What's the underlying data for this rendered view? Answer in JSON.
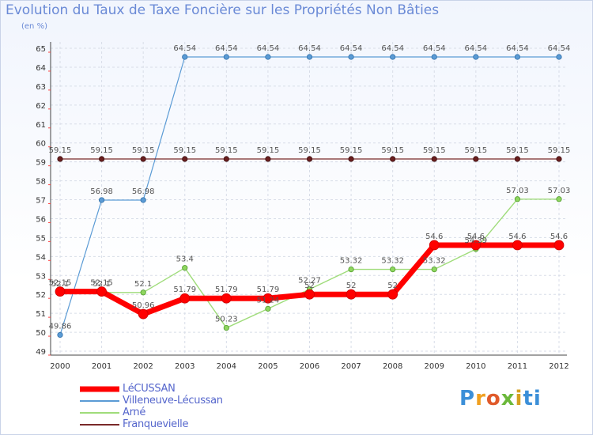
{
  "header": {
    "title": "Evolution du Taux de Taxe Foncière sur les Propriétés Non Bâties",
    "unit": "(en %)"
  },
  "logo": {
    "letters": [
      "P",
      "r",
      "o",
      "x",
      "i",
      "ti"
    ]
  },
  "chart_data": {
    "type": "line",
    "title": "Evolution du Taux de Taxe Foncière sur les Propriétés Non Bâties",
    "ylabel": "(en %)",
    "xlabel": "",
    "categories": [
      "2000",
      "2001",
      "2002",
      "2003",
      "2004",
      "2005",
      "2006",
      "2007",
      "2008",
      "2009",
      "2010",
      "2011",
      "2012"
    ],
    "ylim": [
      49,
      65
    ],
    "yticks": [
      "49",
      "50",
      "51",
      "52",
      "53",
      "54",
      "55",
      "56",
      "57",
      "58",
      "59",
      "60",
      "61",
      "62",
      "63",
      "64",
      "65"
    ],
    "grid": true,
    "legend_position": "bottom-left",
    "series": [
      {
        "name": "Villeneuve-Lécussan",
        "color": "#5b9bd5",
        "values": [
          49.86,
          56.98,
          56.98,
          64.54,
          64.54,
          64.54,
          64.54,
          64.54,
          64.54,
          64.54,
          64.54,
          64.54,
          64.54
        ],
        "labels": [
          "49.86",
          "56.98",
          "56.98",
          "64.54",
          "64.54",
          "64.54",
          "64.54",
          "64.54",
          "64.54",
          "64.54",
          "64.54",
          "64.54",
          "64.54"
        ]
      },
      {
        "name": "Franquevielle",
        "color": "#7a2a2a",
        "values": [
          59.15,
          59.15,
          59.15,
          59.15,
          59.15,
          59.15,
          59.15,
          59.15,
          59.15,
          59.15,
          59.15,
          59.15,
          59.15
        ],
        "labels": [
          "59.15",
          "59.15",
          "59.15",
          "59.15",
          "59.15",
          "59.15",
          "59.15",
          "59.15",
          "59.15",
          "59.15",
          "59.15",
          "59.15",
          "59.15"
        ]
      },
      {
        "name": "Arné",
        "color": "#9fdc7a",
        "values": [
          52.1,
          52.1,
          52.1,
          53.4,
          50.23,
          51.24,
          52.27,
          53.32,
          53.32,
          53.32,
          54.39,
          57.03,
          57.03
        ],
        "labels": [
          "52.1",
          "52.1",
          "52.1",
          "53.4",
          "50.23",
          "51.24",
          "52.27",
          "53.32",
          "53.32",
          "53.32",
          "54.39",
          "57.03",
          "57.03"
        ]
      },
      {
        "name": "LéCUSSAN",
        "color": "#ff0000",
        "values": [
          52.15,
          52.15,
          50.96,
          51.79,
          51.79,
          51.79,
          52,
          52,
          52,
          54.6,
          54.6,
          54.6,
          54.6
        ],
        "labels": [
          "52.15",
          "52.15",
          "50.96",
          "51.79",
          "51.79",
          "51.79",
          "52",
          "52",
          "52",
          "54.6",
          "54.6",
          "54.6",
          "54.6"
        ]
      }
    ],
    "legend": [
      "LéCUSSAN",
      "Villeneuve-Lécussan",
      "Arné",
      "Franquevielle"
    ]
  }
}
